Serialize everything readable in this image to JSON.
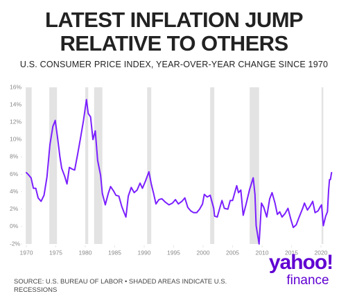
{
  "chart_data": {
    "type": "line",
    "title": "LATEST INFLATION JUMP\nRELATIVE TO OTHERS",
    "subtitle": "U.S. CONSUMER PRICE INDEX, YEAR-OVER-YEAR CHANGE SINCE 1970",
    "source": "SOURCE: U.S. BUREAU OF LABOR • SHADED AREAS INDICATE U.S. RECESSIONS",
    "xlim": [
      1969.5,
      2022
    ],
    "xticks": [
      1970,
      1975,
      1980,
      1985,
      1990,
      1995,
      2000,
      2005,
      2010,
      2015,
      2020
    ],
    "ylim": [
      -2,
      16
    ],
    "yticks": [
      {
        "value": -2,
        "label": "-2%"
      },
      {
        "value": 0,
        "label": "0%"
      },
      {
        "value": 2,
        "label": "2%"
      },
      {
        "value": 4,
        "label": "4%"
      },
      {
        "value": 6,
        "label": "6%"
      },
      {
        "value": 8,
        "label": "8%"
      },
      {
        "value": 10,
        "label": "10%"
      },
      {
        "value": 12,
        "label": "12%"
      },
      {
        "value": 14,
        "label": "14%"
      },
      {
        "value": 16,
        "label": "16%"
      }
    ],
    "grid": false,
    "recession_color": "#e3e3e3",
    "recessions": [
      [
        1969.9,
        1970.9
      ],
      [
        1973.9,
        1975.2
      ],
      [
        1980.0,
        1980.5
      ],
      [
        1981.5,
        1982.9
      ],
      [
        1990.5,
        1991.2
      ],
      [
        2001.2,
        2001.9
      ],
      [
        2007.9,
        2009.5
      ],
      [
        2020.1,
        2020.4
      ]
    ],
    "color": "#7a1fff",
    "x": [
      1970.0,
      1970.3,
      1970.8,
      1971.2,
      1971.6,
      1972.0,
      1972.5,
      1973.0,
      1973.5,
      1974.0,
      1974.5,
      1974.9,
      1975.3,
      1975.7,
      1976.0,
      1976.5,
      1976.9,
      1977.3,
      1977.8,
      1978.2,
      1978.7,
      1979.2,
      1979.7,
      1980.2,
      1980.5,
      1980.9,
      1981.3,
      1981.7,
      1982.1,
      1982.6,
      1982.9,
      1983.4,
      1983.9,
      1984.3,
      1984.8,
      1985.2,
      1985.7,
      1986.2,
      1986.6,
      1986.9,
      1987.3,
      1987.8,
      1988.3,
      1988.8,
      1989.3,
      1989.7,
      1990.2,
      1990.8,
      1991.2,
      1991.6,
      1992.0,
      1992.5,
      1993.0,
      1993.6,
      1994.2,
      1994.8,
      1995.3,
      1995.8,
      1996.4,
      1996.9,
      1997.4,
      1997.9,
      1998.4,
      1998.9,
      1999.4,
      1999.9,
      2000.2,
      2000.7,
      2001.2,
      2001.8,
      2001.95,
      2002.4,
      2002.9,
      2003.2,
      2003.6,
      2004.2,
      2004.6,
      2005.0,
      2005.7,
      2006.0,
      2006.4,
      2006.8,
      2007.3,
      2007.9,
      2008.5,
      2008.8,
      2009.0,
      2009.5,
      2009.9,
      2010.3,
      2010.8,
      2011.3,
      2011.7,
      2012.2,
      2012.6,
      2013.0,
      2013.4,
      2013.9,
      2014.4,
      2014.9,
      2015.3,
      2015.8,
      2016.3,
      2016.9,
      2017.2,
      2017.7,
      2018.2,
      2018.6,
      2019.0,
      2019.5,
      2019.9,
      2020.1,
      2020.4,
      2020.8,
      2021.1,
      2021.3,
      2021.45,
      2021.6,
      2021.8
    ],
    "values": [
      6.2,
      6.0,
      5.6,
      4.4,
      4.4,
      3.3,
      2.9,
      3.6,
      5.7,
      9.4,
      11.5,
      12.2,
      10.2,
      8.0,
      6.7,
      5.8,
      4.9,
      6.8,
      6.6,
      6.5,
      8.3,
      10.2,
      12.2,
      14.6,
      13.0,
      12.6,
      10.0,
      11.0,
      7.6,
      5.9,
      3.8,
      2.5,
      3.8,
      4.6,
      4.1,
      3.6,
      3.5,
      2.3,
      1.6,
      1.1,
      3.5,
      4.5,
      3.9,
      4.2,
      5.0,
      4.4,
      5.2,
      6.3,
      4.9,
      3.8,
      2.6,
      3.1,
      3.2,
      2.8,
      2.5,
      2.7,
      3.1,
      2.6,
      2.9,
      3.3,
      2.2,
      1.8,
      1.6,
      1.6,
      2.0,
      2.6,
      3.7,
      3.4,
      3.6,
      2.1,
      1.2,
      1.1,
      2.3,
      3.0,
      2.1,
      2.0,
      3.0,
      3.0,
      4.7,
      3.9,
      4.2,
      1.3,
      2.6,
      4.3,
      5.6,
      3.7,
      0.1,
      -2.0,
      2.7,
      2.2,
      1.1,
      3.2,
      3.9,
      2.7,
      1.4,
      1.7,
      1.1,
      1.5,
      2.1,
      0.8,
      -0.1,
      0.2,
      1.1,
      2.1,
      2.7,
      1.9,
      2.4,
      2.9,
      1.6,
      1.8,
      2.3,
      2.5,
      0.1,
      1.2,
      1.7,
      4.2,
      5.4,
      5.4,
      6.2
    ]
  },
  "logo": {
    "brand": "yahoo!",
    "sub": "finance"
  }
}
